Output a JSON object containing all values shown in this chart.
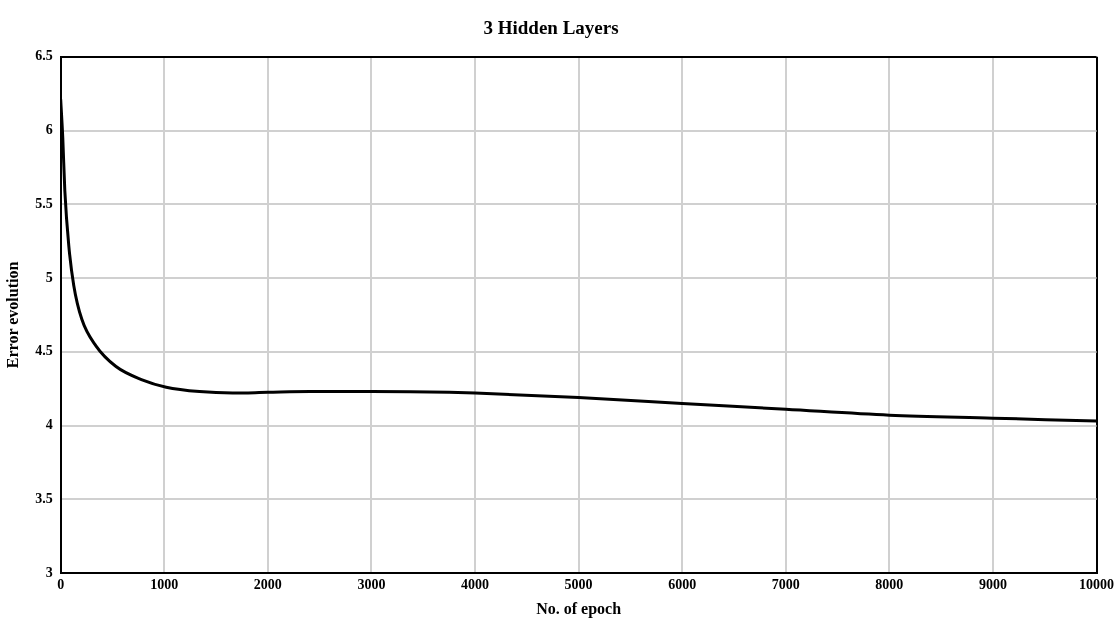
{
  "chart_data": {
    "type": "line",
    "title": "3 Hidden Layers",
    "xlabel": "No. of epoch",
    "ylabel": "Error evolution",
    "x": [
      0,
      20,
      40,
      78,
      126,
      204,
      340,
      534,
      786,
      1019,
      1340,
      1660,
      2000,
      2408,
      2718,
      3000,
      3750,
      4000,
      5000,
      6000,
      7000,
      8000,
      9000,
      10000
    ],
    "series": [
      {
        "color": "#000000",
        "values": [
          6.21,
          5.95,
          5.59,
          5.22,
          4.95,
          4.72,
          4.54,
          4.4,
          4.31,
          4.26,
          4.23,
          4.22,
          4.225,
          4.23,
          4.23,
          4.23,
          4.225,
          4.22,
          4.19,
          4.15,
          4.11,
          4.07,
          4.05,
          4.03
        ]
      }
    ],
    "xlim": [
      0,
      10000
    ],
    "xticks": [
      0,
      1000,
      2000,
      3000,
      4000,
      5000,
      6000,
      7000,
      8000,
      9000,
      10000
    ],
    "ylim": [
      3,
      6.5
    ],
    "yticks": [
      3,
      3.5,
      4,
      4.5,
      5,
      5.5,
      6,
      6.5
    ],
    "grid": true,
    "legend": false,
    "marker": "none",
    "line_style": "solid"
  }
}
